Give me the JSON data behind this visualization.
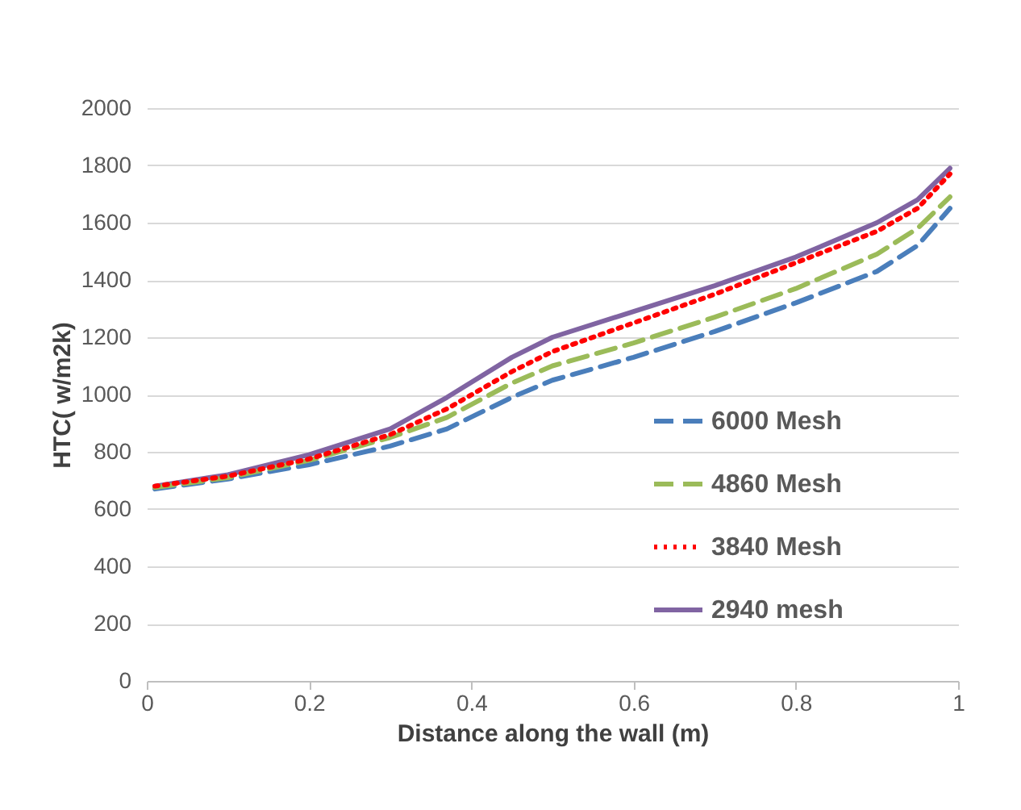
{
  "chart_data": {
    "type": "line",
    "xlabel": "Distance along the wall (m)",
    "ylabel": "HTC( w/m2k)",
    "xlim": [
      0,
      1
    ],
    "xticks": [
      0,
      0.2,
      0.4,
      0.6,
      0.8,
      1
    ],
    "ylim": [
      0,
      2000
    ],
    "yticks": [
      0,
      200,
      400,
      600,
      800,
      1000,
      1200,
      1400,
      1600,
      1800,
      2000
    ],
    "grid": "y",
    "legend": "right",
    "x": [
      0.01,
      0.1,
      0.2,
      0.3,
      0.37,
      0.45,
      0.5,
      0.6,
      0.7,
      0.8,
      0.9,
      0.95,
      0.99
    ],
    "series": [
      {
        "name": "6000 Mesh",
        "color": "#4a7ebb",
        "line_style": "dashed",
        "values": [
          670,
          705,
          755,
          820,
          880,
          990,
          1050,
          1130,
          1220,
          1320,
          1430,
          1520,
          1650
        ]
      },
      {
        "name": "4860 Mesh",
        "color": "#9bbb59",
        "line_style": "dashed",
        "values": [
          675,
          710,
          770,
          850,
          920,
          1040,
          1100,
          1180,
          1270,
          1370,
          1490,
          1580,
          1690
        ]
      },
      {
        "name": "3840 Mesh",
        "color": "#ff0000",
        "line_style": "dotted",
        "values": [
          680,
          715,
          775,
          860,
          950,
          1080,
          1150,
          1250,
          1350,
          1460,
          1570,
          1650,
          1770
        ]
      },
      {
        "name": "2940 mesh",
        "color": "#8064a2",
        "line_style": "solid",
        "values": [
          680,
          720,
          790,
          880,
          990,
          1130,
          1200,
          1290,
          1380,
          1480,
          1600,
          1680,
          1790
        ]
      }
    ]
  }
}
